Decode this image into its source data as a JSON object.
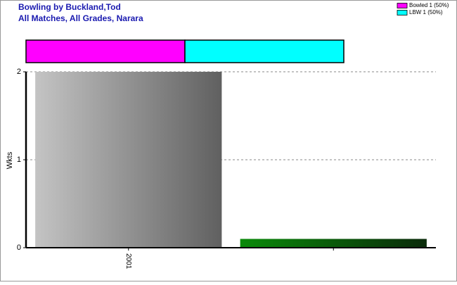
{
  "chart_data": {
    "type": "bar",
    "title": "Bowling by Buckland,Tod",
    "subtitle": "All Matches, All Grades, Narara",
    "y_label": "Wkts",
    "categories": [
      "2001",
      null
    ],
    "values": [
      2,
      0.1
    ],
    "colors": [
      "#9a9a9a",
      "#0a7a0a"
    ],
    "ylim": [
      0,
      2
    ],
    "yticks": [
      0,
      1,
      2
    ],
    "grid": true,
    "breakdown": {
      "labels": [
        "Bowled 1 (50%)",
        "LBW 1 (50%)"
      ],
      "values": [
        1,
        1
      ],
      "colors": [
        "#ff00ff",
        "#00ffff"
      ]
    },
    "legend": "top-right"
  }
}
